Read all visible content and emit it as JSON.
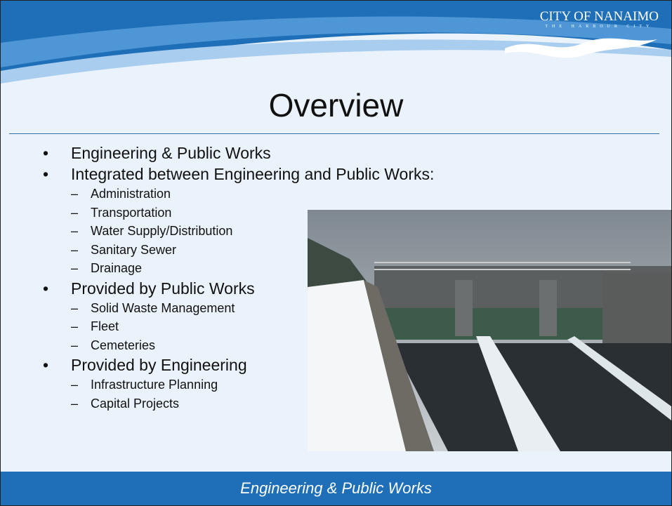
{
  "header": {
    "logo": "CITY OF NANAIMO",
    "logo_tagline": "THE HARBOUR CITY"
  },
  "title": "Overview",
  "items": [
    {
      "text": "Engineering & Public Works",
      "sub": []
    },
    {
      "text": "Integrated between Engineering and Public Works:",
      "sub": [
        "Administration",
        "Transportation",
        "Water Supply/Distribution",
        "Sanitary Sewer",
        "Drainage"
      ]
    },
    {
      "text": "Provided by Public Works",
      "sub": [
        "Solid Waste Management",
        "Fleet",
        "Cemeteries"
      ]
    },
    {
      "text": "Provided by Engineering",
      "sub": [
        "Infrastructure Planning",
        "Capital Projects"
      ]
    }
  ],
  "footer": "Engineering & Public Works"
}
